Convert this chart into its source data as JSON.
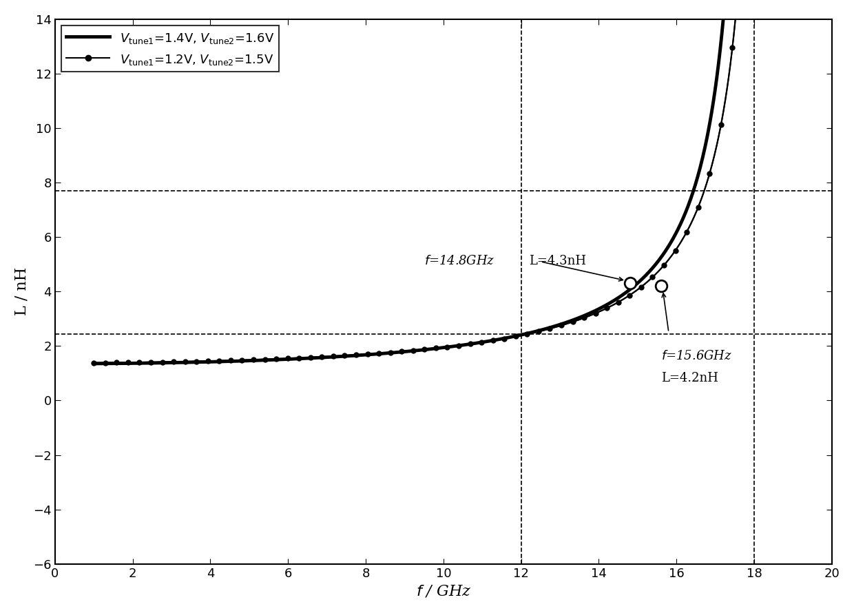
{
  "title": "",
  "xlabel": "$f$ / GHz",
  "ylabel": "L / nH",
  "xlim": [
    0.0,
    20.0
  ],
  "ylim": [
    -6.0,
    14.0
  ],
  "xticks": [
    0.0,
    2.0,
    4.0,
    6.0,
    8.0,
    10.0,
    12.0,
    14.0,
    16.0,
    18.0,
    20.0
  ],
  "yticks": [
    -6.0,
    -4.0,
    -2.0,
    0.0,
    2.0,
    4.0,
    6.0,
    8.0,
    10.0,
    12.0,
    14.0
  ],
  "hline_y1": 7.7,
  "hline_y2": 2.45,
  "vline_x1": 12.0,
  "vline_x2": 18.0,
  "marker_x1": 14.8,
  "marker_y1": 4.3,
  "marker_x2": 15.6,
  "marker_y2": 4.2,
  "resonance1": 18.1,
  "resonance2": 18.4,
  "legend_label1": "$V_{\\mathrm{tune1}}$=1.4V, $V_{\\mathrm{tune2}}$=1.6V",
  "legend_label2": "$V_{\\mathrm{tune1}}$=1.2V, $V_{\\mathrm{tune2}}$=1.5V",
  "annotation1_text": "$f$=14.8GHz\nL=4.3nH",
  "annotation2_text": "$f$=15.6GHz\nL=4.2nH",
  "line1_color": "#000000",
  "line2_color": "#333333",
  "background_color": "#ffffff"
}
